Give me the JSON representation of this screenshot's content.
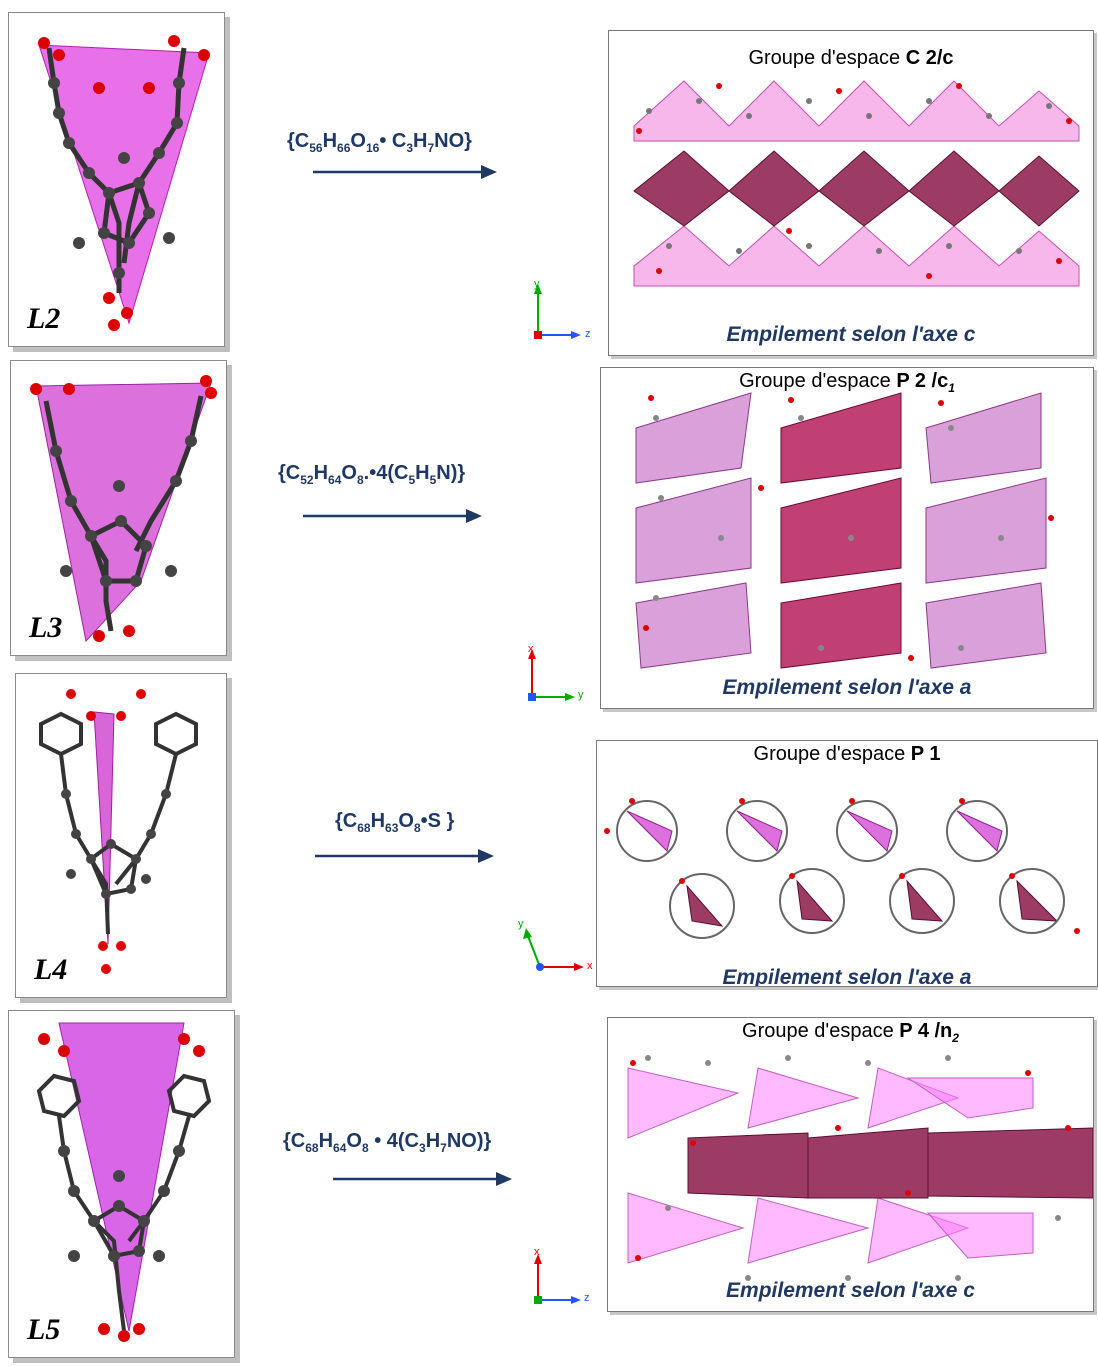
{
  "rows": [
    {
      "ligand": "L2",
      "formula_parts": [
        "{C",
        "56",
        "H",
        "66",
        "O",
        "16",
        "• C",
        "3",
        "H",
        "7",
        "NO}"
      ],
      "space_group_prefix": "Groupe d'espace",
      "space_group": "C 2/c",
      "caption": "Empilement selon l'axe c",
      "axes": {
        "vertical": "y",
        "horizontal": "z"
      }
    },
    {
      "ligand": "L3",
      "formula_parts": [
        "{C",
        "52",
        "H",
        "64",
        "O",
        "8",
        ".•4(C",
        "5",
        "H",
        "5",
        "N)}"
      ],
      "space_group_prefix": "Groupe d'espace",
      "space_group": "P 2 /c",
      "space_group_sub": "1",
      "caption": "Empilement selon l'axe a",
      "axes": {
        "vertical": "x",
        "horizontal": "y"
      }
    },
    {
      "ligand": "L4",
      "formula_parts": [
        "{C",
        "68",
        "H",
        "63",
        "O",
        "8",
        "•S }"
      ],
      "space_group_prefix": "Groupe d'espace",
      "space_group": "P 1",
      "caption": "Empilement selon l'axe a",
      "axes": {
        "vertical": "y",
        "horizontal": "x"
      }
    },
    {
      "ligand": "L5",
      "formula_parts": [
        "{C",
        "68",
        "H",
        "64",
        "O",
        "8",
        " • 4(C",
        "3",
        "H",
        "7",
        "NO)}"
      ],
      "space_group_prefix": "Groupe d'espace",
      "space_group": "P 4 /n",
      "space_group_sub": "2",
      "caption": "Empilement selon l'axe  c",
      "axes": {
        "vertical": "x",
        "horizontal": "z"
      }
    }
  ],
  "colors": {
    "polyhedron_light": "#e060e0",
    "polyhedron_dark": "#8b1a4a",
    "atom_carbon": "#555555",
    "atom_oxygen": "#dd0000",
    "text_blue": "#1f3864",
    "axis_x": "#dd0000",
    "axis_y": "#00aa00",
    "axis_z": "#2255ff"
  }
}
